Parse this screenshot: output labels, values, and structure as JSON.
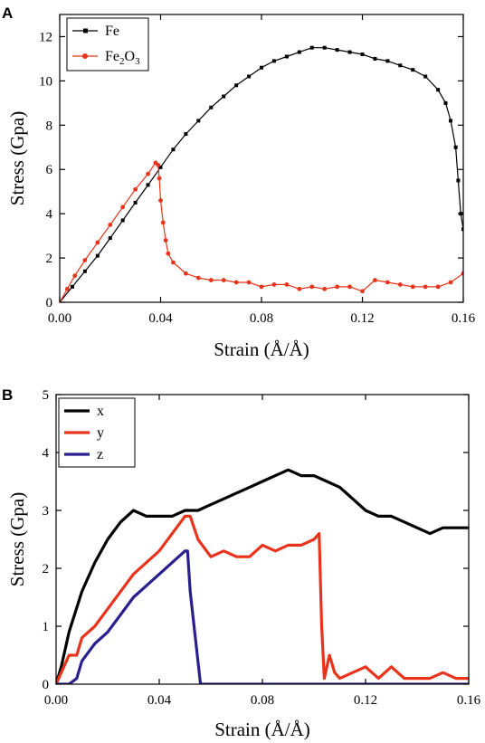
{
  "chart_data": [
    {
      "panel": "A",
      "type": "line",
      "xlabel": "Strain (Å/Å)",
      "ylabel": "Stress (Gpa)",
      "xlim": [
        0,
        0.16
      ],
      "ylim": [
        0,
        13
      ],
      "xticks": [
        "0.00",
        "0.04",
        "0.08",
        "0.12",
        "0.16"
      ],
      "yticks": [
        "0",
        "2",
        "4",
        "6",
        "8",
        "10",
        "12"
      ],
      "legend_position": "top-left",
      "grid": false,
      "series": [
        {
          "name": "Fe",
          "name_sub": "",
          "color": "#000000",
          "marker": "square",
          "x": [
            0.0,
            0.005,
            0.01,
            0.015,
            0.02,
            0.025,
            0.03,
            0.035,
            0.04,
            0.045,
            0.05,
            0.055,
            0.06,
            0.065,
            0.07,
            0.075,
            0.08,
            0.085,
            0.09,
            0.095,
            0.1,
            0.105,
            0.11,
            0.115,
            0.12,
            0.125,
            0.13,
            0.135,
            0.14,
            0.145,
            0.15,
            0.153,
            0.155,
            0.157,
            0.158,
            0.159,
            0.16
          ],
          "y": [
            0.0,
            0.7,
            1.4,
            2.1,
            2.9,
            3.7,
            4.5,
            5.3,
            6.1,
            6.9,
            7.6,
            8.2,
            8.8,
            9.3,
            9.8,
            10.2,
            10.6,
            10.9,
            11.1,
            11.3,
            11.5,
            11.5,
            11.4,
            11.3,
            11.2,
            11.0,
            10.9,
            10.7,
            10.5,
            10.2,
            9.6,
            9.0,
            8.2,
            7.0,
            5.5,
            4.0,
            3.3
          ]
        },
        {
          "name": "Fe",
          "name_sub": "2",
          "name_rest": "O",
          "name_sub2": "3",
          "color": "#e8341c",
          "marker": "circle",
          "x": [
            0.0,
            0.003,
            0.006,
            0.01,
            0.015,
            0.02,
            0.025,
            0.03,
            0.035,
            0.038,
            0.039,
            0.0395,
            0.04,
            0.041,
            0.042,
            0.043,
            0.045,
            0.05,
            0.055,
            0.06,
            0.065,
            0.07,
            0.075,
            0.08,
            0.085,
            0.09,
            0.095,
            0.1,
            0.105,
            0.11,
            0.115,
            0.12,
            0.125,
            0.13,
            0.135,
            0.14,
            0.145,
            0.15,
            0.155,
            0.16
          ],
          "y": [
            0.0,
            0.6,
            1.2,
            1.9,
            2.7,
            3.5,
            4.3,
            5.1,
            5.8,
            6.3,
            6.2,
            5.6,
            4.6,
            3.6,
            2.8,
            2.2,
            1.8,
            1.3,
            1.1,
            1.0,
            1.0,
            0.9,
            0.9,
            0.7,
            0.8,
            0.8,
            0.6,
            0.7,
            0.6,
            0.7,
            0.7,
            0.5,
            1.0,
            0.9,
            0.8,
            0.7,
            0.7,
            0.7,
            0.9,
            1.3
          ]
        }
      ]
    },
    {
      "panel": "B",
      "type": "line",
      "xlabel": "Strain (Å/Å)",
      "ylabel": "Stress (Gpa)",
      "xlim": [
        0,
        0.16
      ],
      "ylim": [
        0,
        5
      ],
      "xticks": [
        "0.00",
        "0.04",
        "0.08",
        "0.12",
        "0.16"
      ],
      "yticks": [
        "0",
        "1",
        "2",
        "3",
        "4",
        "5"
      ],
      "legend_position": "top-left",
      "grid": false,
      "series": [
        {
          "name": "x",
          "color": "#000000",
          "x": [
            0.0,
            0.002,
            0.005,
            0.01,
            0.015,
            0.02,
            0.025,
            0.03,
            0.035,
            0.04,
            0.045,
            0.05,
            0.055,
            0.06,
            0.065,
            0.07,
            0.075,
            0.08,
            0.085,
            0.09,
            0.095,
            0.1,
            0.105,
            0.11,
            0.115,
            0.12,
            0.125,
            0.13,
            0.135,
            0.14,
            0.145,
            0.15,
            0.155,
            0.16
          ],
          "y": [
            0.0,
            0.3,
            0.9,
            1.6,
            2.1,
            2.5,
            2.8,
            3.0,
            2.9,
            2.9,
            2.9,
            3.0,
            3.0,
            3.1,
            3.2,
            3.3,
            3.4,
            3.5,
            3.6,
            3.7,
            3.6,
            3.6,
            3.5,
            3.4,
            3.2,
            3.0,
            2.9,
            2.9,
            2.8,
            2.7,
            2.6,
            2.7,
            2.7,
            2.7
          ]
        },
        {
          "name": "y",
          "color": "#e8341c",
          "x": [
            0.0,
            0.002,
            0.005,
            0.008,
            0.01,
            0.015,
            0.02,
            0.025,
            0.03,
            0.035,
            0.04,
            0.045,
            0.05,
            0.052,
            0.055,
            0.06,
            0.065,
            0.07,
            0.075,
            0.08,
            0.085,
            0.09,
            0.095,
            0.1,
            0.102,
            0.103,
            0.104,
            0.106,
            0.108,
            0.11,
            0.115,
            0.12,
            0.125,
            0.13,
            0.135,
            0.14,
            0.145,
            0.15,
            0.155,
            0.16
          ],
          "y": [
            0.0,
            0.2,
            0.5,
            0.5,
            0.8,
            1.0,
            1.3,
            1.6,
            1.9,
            2.1,
            2.3,
            2.6,
            2.9,
            2.9,
            2.5,
            2.2,
            2.3,
            2.2,
            2.2,
            2.4,
            2.3,
            2.4,
            2.4,
            2.5,
            2.6,
            1.0,
            0.1,
            0.5,
            0.2,
            0.1,
            0.2,
            0.3,
            0.1,
            0.3,
            0.1,
            0.1,
            0.1,
            0.2,
            0.1,
            0.1
          ]
        },
        {
          "name": "z",
          "color": "#2a1f8f",
          "x": [
            0.0,
            0.005,
            0.008,
            0.01,
            0.015,
            0.02,
            0.025,
            0.03,
            0.035,
            0.04,
            0.045,
            0.05,
            0.051,
            0.052,
            0.054,
            0.056,
            0.06,
            0.08,
            0.1,
            0.12,
            0.14,
            0.16
          ],
          "y": [
            0.0,
            0.0,
            0.1,
            0.4,
            0.7,
            0.9,
            1.2,
            1.5,
            1.7,
            1.9,
            2.1,
            2.3,
            2.3,
            1.6,
            0.8,
            0.0,
            0.0,
            0.0,
            0.0,
            0.0,
            0.0,
            0.0
          ]
        }
      ]
    }
  ]
}
